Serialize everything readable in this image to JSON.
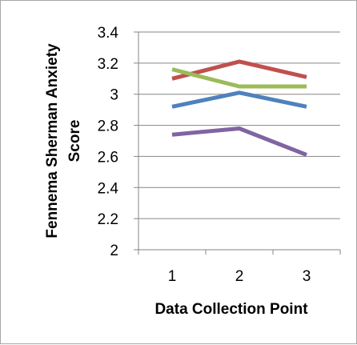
{
  "chart_data": {
    "type": "line",
    "title": "",
    "xlabel": "Data Collection Point",
    "ylabel_lines": [
      "Fennema Sherman Anxiety",
      "Score"
    ],
    "categories": [
      "1",
      "2",
      "3"
    ],
    "ylim": [
      2,
      3.4
    ],
    "yticks": [
      "2",
      "2.2",
      "2.4",
      "2.6",
      "2.8",
      "3",
      "3.2",
      "3.4"
    ],
    "grid": true,
    "legend": "none",
    "series": [
      {
        "color": "#4f81bd",
        "values": [
          2.92,
          3.01,
          2.92
        ]
      },
      {
        "color": "#c0504d",
        "values": [
          3.1,
          3.21,
          3.11
        ]
      },
      {
        "color": "#9bbb59",
        "values": [
          3.16,
          3.05,
          3.05
        ]
      },
      {
        "color": "#8064a2",
        "values": [
          2.74,
          2.78,
          2.61
        ]
      }
    ]
  }
}
